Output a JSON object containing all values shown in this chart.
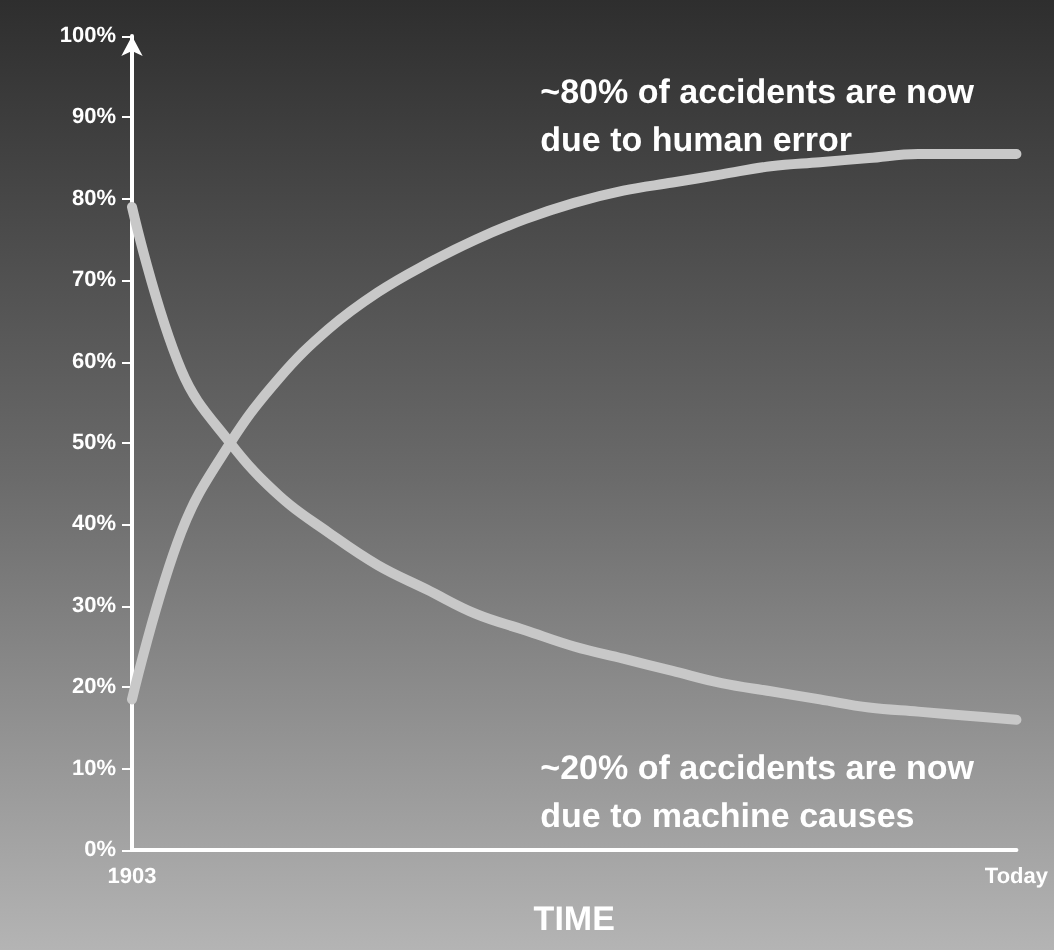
{
  "chart_data": {
    "type": "line",
    "categories": [
      "1903",
      null,
      null,
      null,
      null,
      null,
      null,
      null,
      null,
      null,
      null,
      null,
      null,
      null,
      null,
      null,
      null,
      null,
      "Today"
    ],
    "xlabel": "TIME",
    "series": [
      {
        "color": "#c8c8c8",
        "values": [
          18.5,
          39,
          50,
          58,
          64,
          68.5,
          72,
          75,
          77.5,
          79.5,
          81,
          82,
          83,
          84,
          84.5,
          85,
          85.5,
          85.5,
          85.5
        ]
      },
      {
        "color": "#c8c8c8",
        "values": [
          79,
          59,
          50,
          43.5,
          39,
          35,
          32,
          29,
          27,
          25,
          23.5,
          22,
          20.5,
          19.5,
          18.5,
          17.5,
          17,
          16.5,
          16
        ]
      }
    ],
    "ylim": [
      0,
      100
    ],
    "yticks": [
      {
        "value": 0,
        "label": "0%"
      },
      {
        "value": 10,
        "label": "10%"
      },
      {
        "value": 20,
        "label": "20%"
      },
      {
        "value": 30,
        "label": "30%"
      },
      {
        "value": 40,
        "label": "40%"
      },
      {
        "value": 50,
        "label": "50%"
      },
      {
        "value": 60,
        "label": "60%"
      },
      {
        "value": 70,
        "label": "70%"
      },
      {
        "value": 80,
        "label": "80%"
      },
      {
        "value": 90,
        "label": "90%"
      },
      {
        "value": 100,
        "label": "100%"
      }
    ],
    "annotations": [
      "~80% of accidents are now\ndue to human error",
      "~20% of accidents are now\ndue to machine causes"
    ],
    "grid": false,
    "marker": "none",
    "line_style": "solid"
  }
}
